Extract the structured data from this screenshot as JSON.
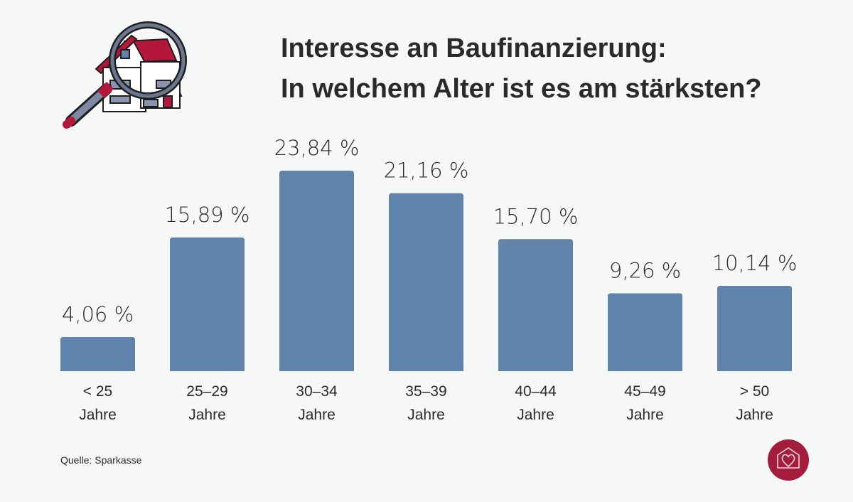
{
  "title_line1": "Interesse an Baufinanzierung:",
  "title_line2": "In welchem Alter ist es am stärksten?",
  "source": "Quelle: Sparkasse",
  "colors": {
    "bar": "#6083ac",
    "accent": "#a51d3c",
    "background": "#f6f8f7"
  },
  "illustration": "magnifying-glass-over-house",
  "logo": "house-heart-logo",
  "chart_data": {
    "type": "bar",
    "title": "Interesse an Baufinanzierung: In welchem Alter ist es am stärksten?",
    "categories": [
      [
        "< 25",
        "Jahre"
      ],
      [
        "25–29",
        "Jahre"
      ],
      [
        "30–34",
        "Jahre"
      ],
      [
        "35–39",
        "Jahre"
      ],
      [
        "40–44",
        "Jahre"
      ],
      [
        "45–49",
        "Jahre"
      ],
      [
        "> 50",
        "Jahre"
      ]
    ],
    "values": [
      4.06,
      15.89,
      23.84,
      21.16,
      15.7,
      9.26,
      10.14
    ],
    "data_labels": [
      "4,06 %",
      "15,89 %",
      "23,84 %",
      "21,16 %",
      "15,70 %",
      "9,26 %",
      "10,14 %"
    ],
    "unit": "%",
    "ylim": [
      0,
      23.84
    ],
    "grid": false,
    "axes_visible": false
  }
}
